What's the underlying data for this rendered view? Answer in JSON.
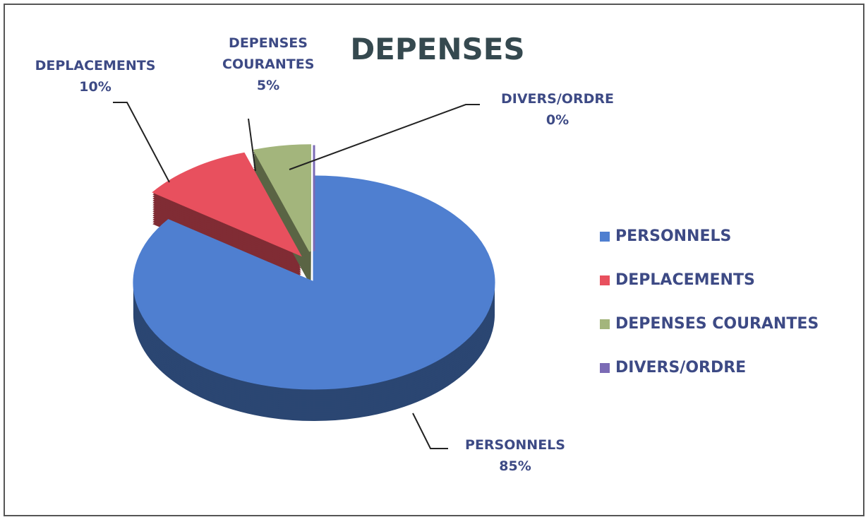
{
  "chart_data": {
    "type": "pie",
    "title": "DEPENSES",
    "categories": [
      "PERSONNELS",
      "DEPLACEMENTS",
      "DEPENSES COURANTES",
      "DIVERS/ORDRE"
    ],
    "values": [
      85,
      10,
      5,
      0
    ],
    "value_labels": [
      "85%",
      "10%",
      "5%",
      "0%"
    ],
    "colors": [
      "#4f7fd0",
      "#e8505e",
      "#a3b57c",
      "#7b6bb5"
    ],
    "legend": "right"
  }
}
